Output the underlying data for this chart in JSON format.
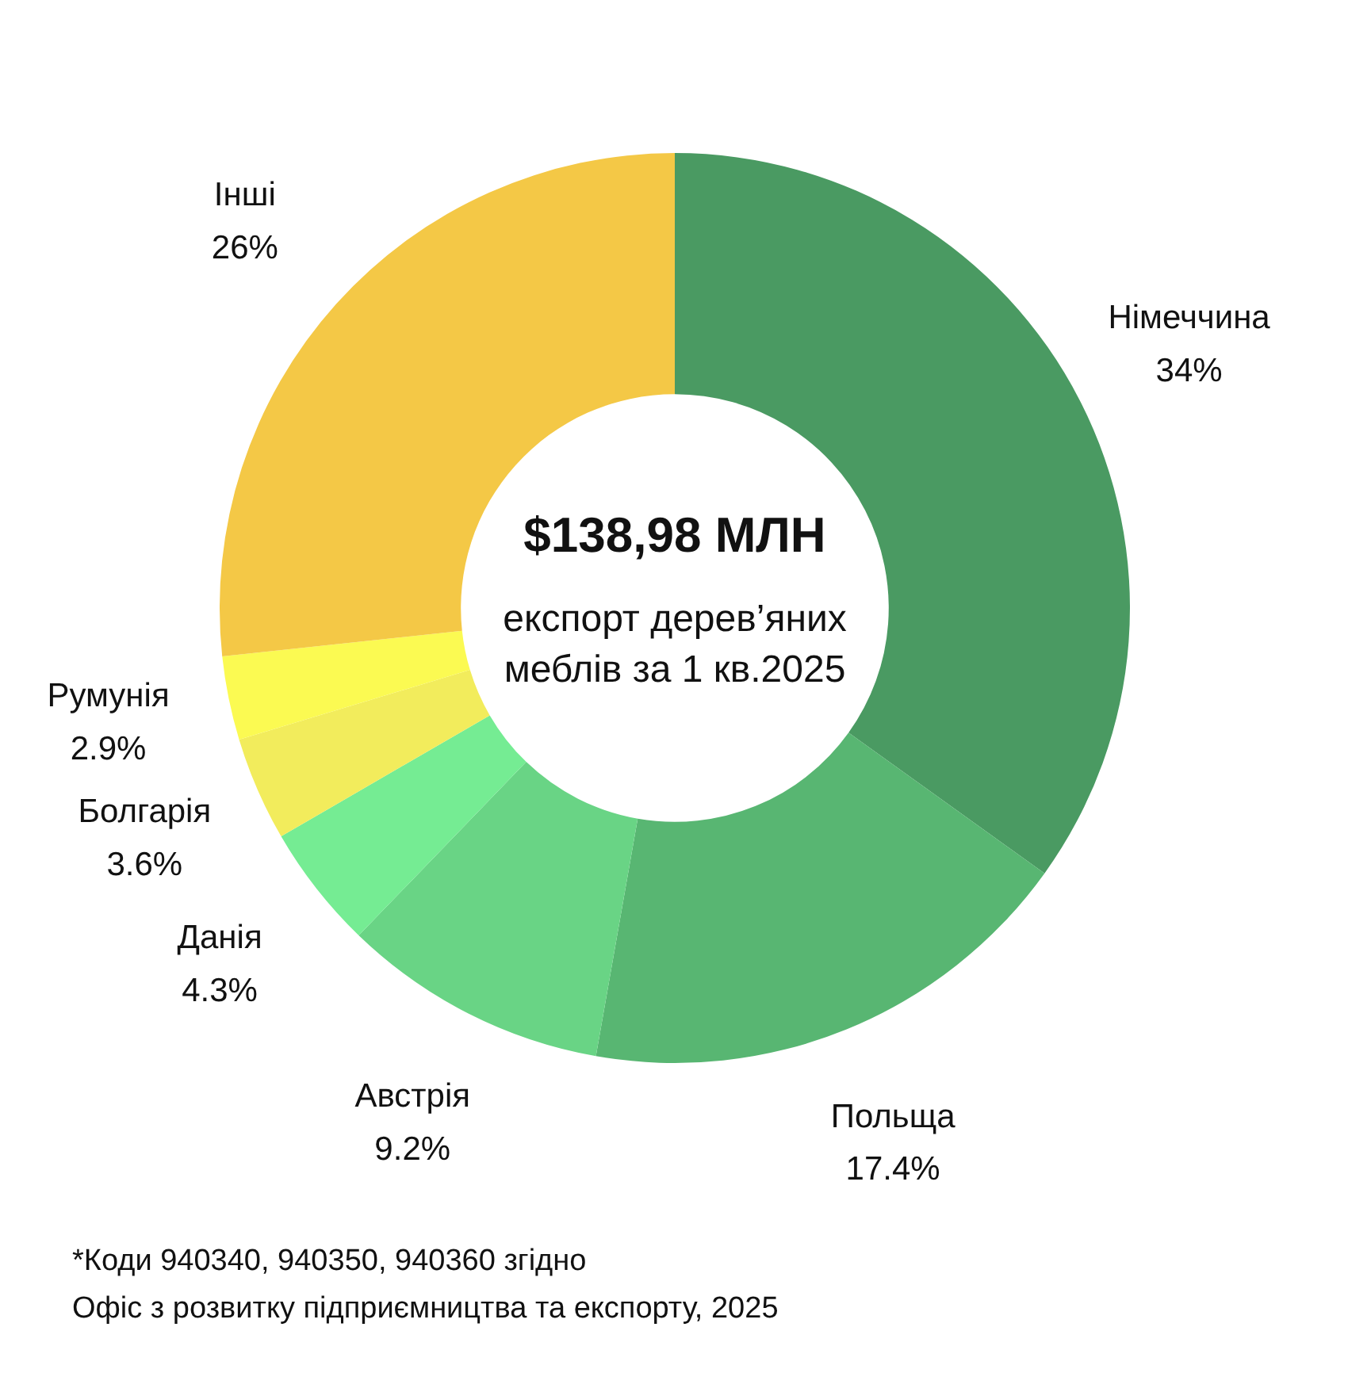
{
  "chart_data": {
    "type": "donut",
    "title": "$138,98 МЛН",
    "subtitle": "експорт дерев’яних\nмеблів за 1 кв.2025",
    "categories": [
      "Німеччина",
      "Польща",
      "Австрія",
      "Данія",
      "Болгарія",
      "Румунія",
      "Інші"
    ],
    "values": [
      34,
      17.4,
      9.2,
      4.3,
      3.6,
      2.9,
      26
    ],
    "value_labels": [
      "34%",
      "17.4%",
      "9.2%",
      "4.3%",
      "3.6%",
      "2.9%",
      "26%"
    ],
    "colors": [
      "#4a9a62",
      "#58b672",
      "#69d485",
      "#75ec93",
      "#f2ec5c",
      "#fbfa52",
      "#f4c846"
    ],
    "legend": false,
    "annotations": [
      "*Коди 940340, 940350, 940360 згідно",
      "Офіс з розвитку підприємництва та експорту, 2025"
    ]
  }
}
